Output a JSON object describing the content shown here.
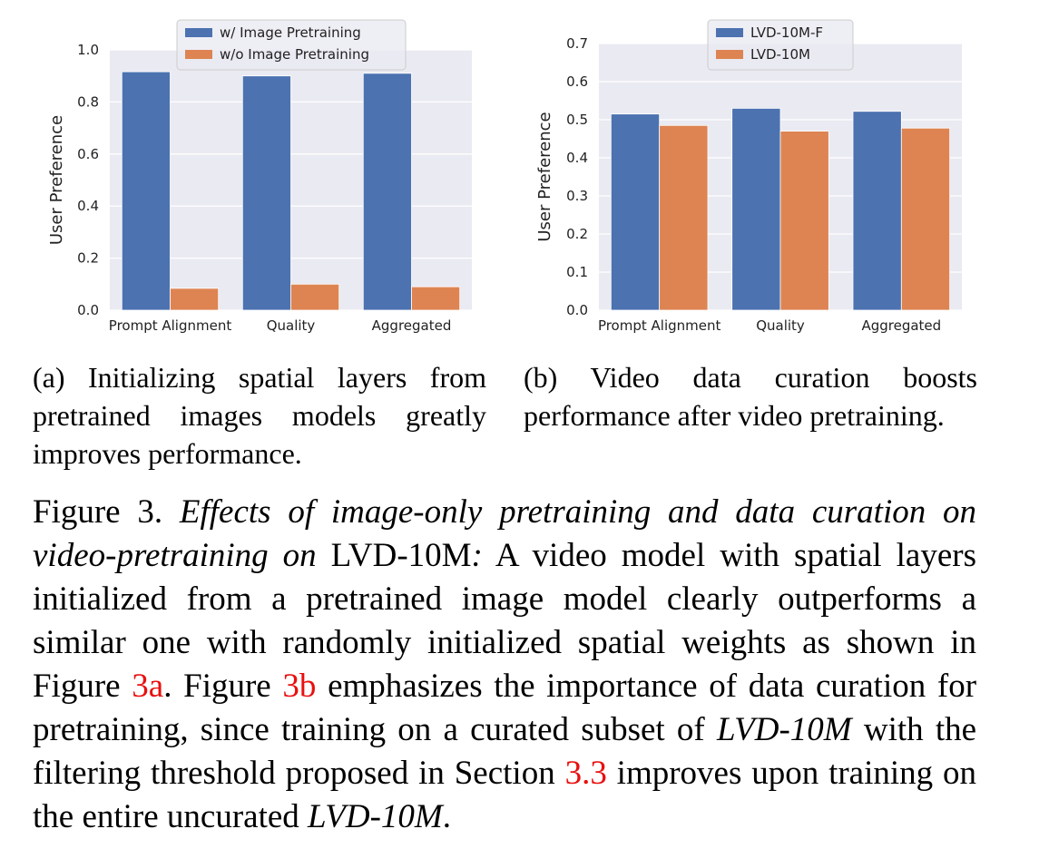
{
  "chart_data": [
    {
      "type": "bar",
      "categories": [
        "Prompt Alignment",
        "Quality",
        "Aggregated"
      ],
      "series": [
        {
          "name": "w/ Image Pretraining",
          "values": [
            0.916,
            0.9,
            0.91
          ],
          "color": "#4c72b0"
        },
        {
          "name": "w/o Image Pretraining",
          "values": [
            0.084,
            0.1,
            0.09
          ],
          "color": "#dd8452"
        }
      ],
      "ylabel": "User Preference",
      "ylim": [
        0,
        1.0
      ],
      "yticks": [
        "0.0",
        "0.2",
        "0.4",
        "0.6",
        "0.8",
        "1.0"
      ],
      "ytick_values": [
        0,
        0.2,
        0.4,
        0.6,
        0.8,
        1.0
      ],
      "grid": true,
      "legend": "top-center"
    },
    {
      "type": "bar",
      "categories": [
        "Prompt Alignment",
        "Quality",
        "Aggregated"
      ],
      "series": [
        {
          "name": "LVD-10M-F",
          "values": [
            0.515,
            0.53,
            0.522
          ],
          "color": "#4c72b0"
        },
        {
          "name": "LVD-10M",
          "values": [
            0.485,
            0.47,
            0.478
          ],
          "color": "#dd8452"
        }
      ],
      "ylabel": "User Preference",
      "ylim": [
        0,
        0.7
      ],
      "yticks": [
        "0.0",
        "0.1",
        "0.2",
        "0.3",
        "0.4",
        "0.5",
        "0.6",
        "0.7"
      ],
      "ytick_values": [
        0,
        0.1,
        0.2,
        0.3,
        0.4,
        0.5,
        0.6,
        0.7
      ],
      "grid": true,
      "legend": "top-center"
    }
  ],
  "subcaptions": {
    "a": "(a) Initializing spatial layers from pretrained images models greatly improves performance.",
    "b": "(b) Video data curation boosts performance after video pretraining."
  },
  "caption": {
    "label": "Figure 3.",
    "italic_title": "Effects of image-only pretraining and data curation on video-pretraining on",
    "dataset": "LVD-10M",
    "colon": ":",
    "text1": "A video model with spatial layers initialized from a pretrained image model clearly outperforms a similar one with randomly initialized spatial weights as shown in Figure",
    "ref_a": "3a",
    "text2": ". Figure",
    "ref_b": "3b",
    "text3": "emphasizes the importance of data curation for pretraining, since training on a curated subset of",
    "italic_ds1": "LVD-10M",
    "text4": "with the filtering threshold proposed in Section",
    "ref_sec": "3.3",
    "text5": "improves upon training on the entire uncurated",
    "italic_ds2": "LVD-10M",
    "end": "."
  }
}
